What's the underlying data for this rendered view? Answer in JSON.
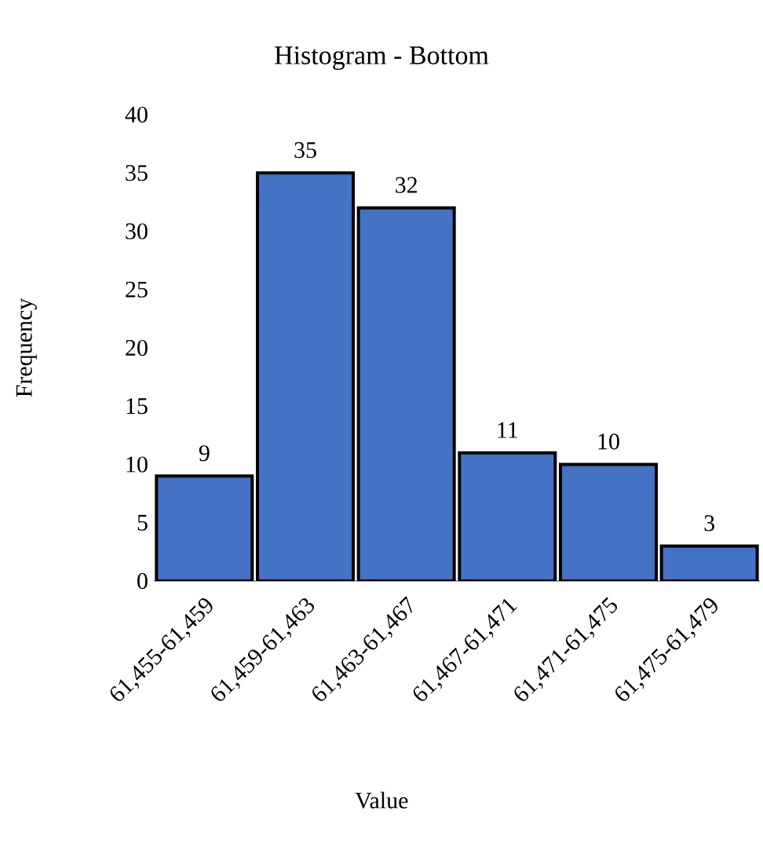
{
  "chart_data": {
    "type": "bar",
    "title": "Histogram - Bottom",
    "xlabel": "Value",
    "ylabel": "Frequency",
    "categories": [
      "61,455-61,459",
      "61,459-61,463",
      "61,463-61,467",
      "61,467-61,471",
      "61,471-61,475",
      "61,475-61,479"
    ],
    "values": [
      9,
      35,
      32,
      11,
      10,
      3
    ],
    "color": "#4472c4",
    "ylim": [
      0,
      40
    ],
    "yticks": [
      0,
      5,
      10,
      15,
      20,
      25,
      30,
      35,
      40
    ],
    "data_labels": true
  }
}
